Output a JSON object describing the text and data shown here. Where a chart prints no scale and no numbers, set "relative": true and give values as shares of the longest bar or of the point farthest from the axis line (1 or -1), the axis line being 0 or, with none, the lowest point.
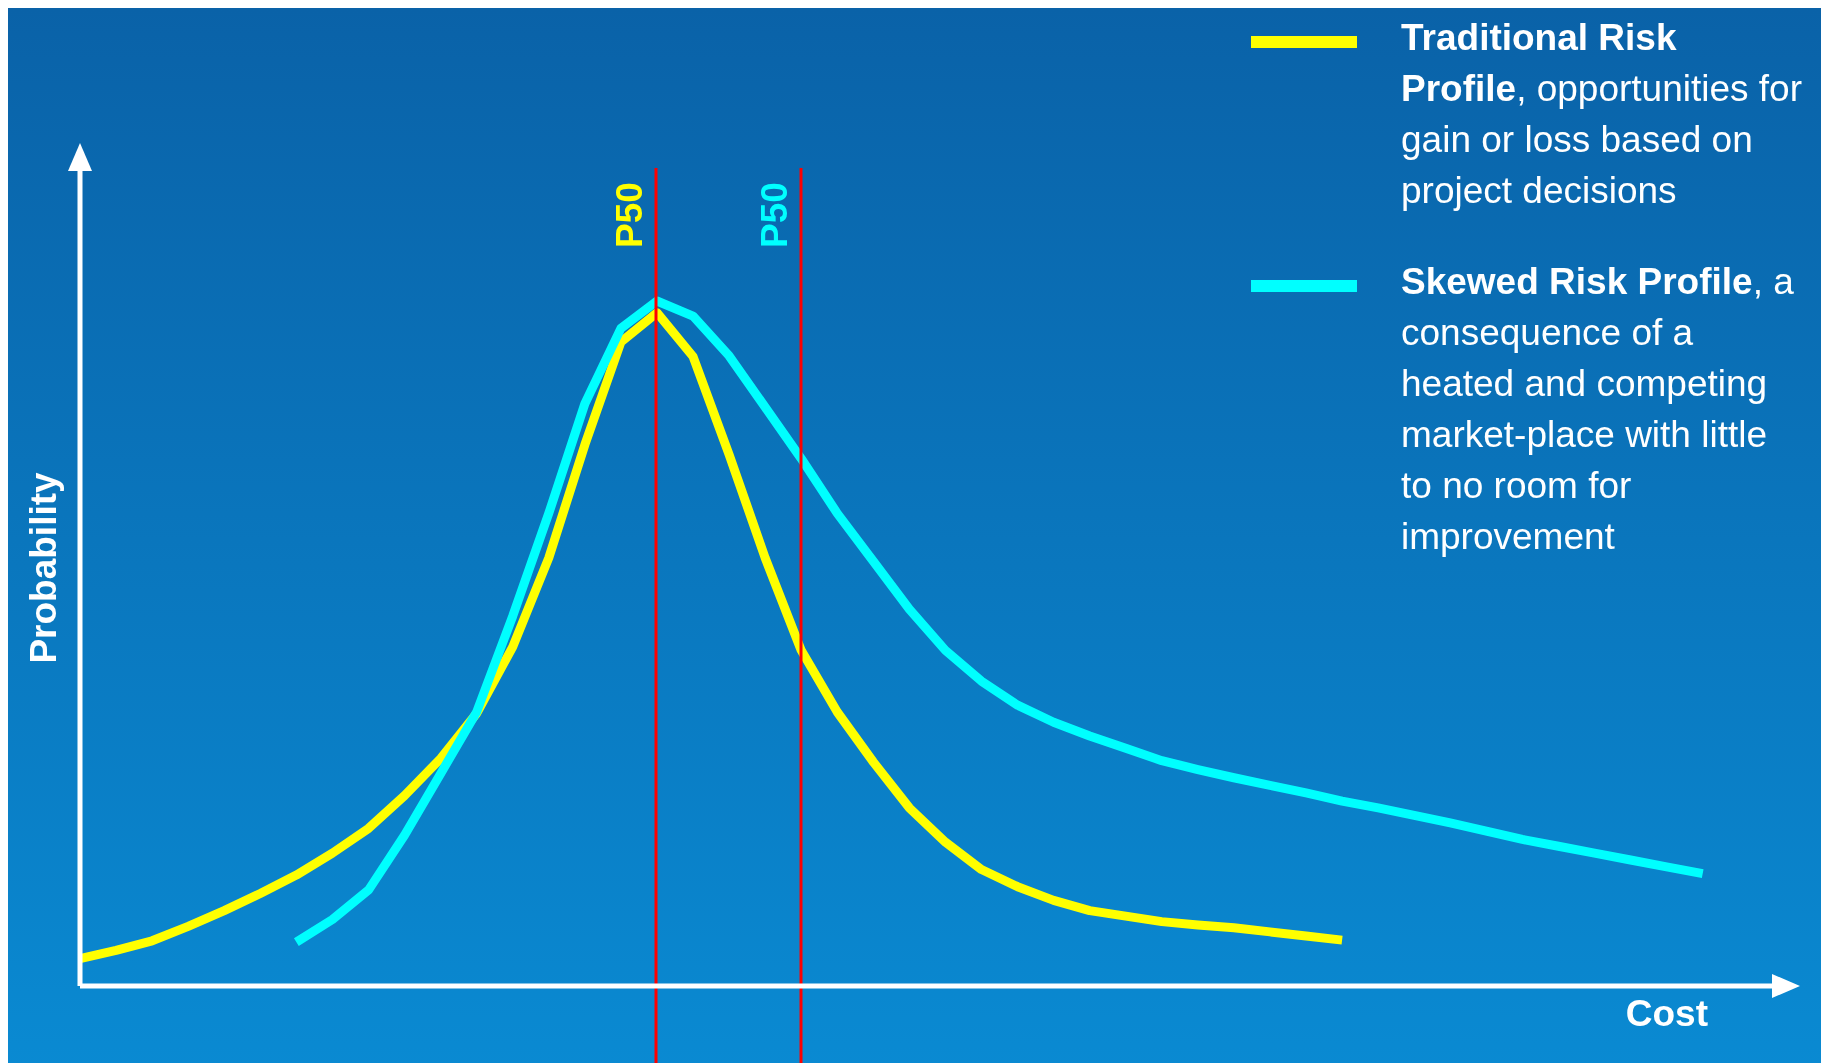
{
  "chart_data": {
    "type": "line",
    "relative": true,
    "xlabel": "Cost",
    "ylabel": "Probability",
    "legend": "top right",
    "marker": "none",
    "line_style": "solid",
    "categories": [
      null,
      null,
      null,
      null,
      null,
      null,
      null,
      null,
      null,
      null,
      null,
      null,
      null,
      null,
      null,
      null,
      null,
      null,
      null,
      null,
      null,
      null,
      null,
      null,
      null,
      null,
      null,
      null,
      null,
      null,
      null,
      null,
      null,
      null,
      null,
      null,
      null,
      null,
      null,
      null,
      null,
      null,
      null,
      null,
      null,
      null
    ],
    "series": [
      {
        "name": "Traditional Risk Profile, opportunities for gain or loss based on project decisions",
        "color": "#ffff00",
        "values": [
          0.04,
          0.052,
          0.066,
          0.087,
          0.11,
          0.135,
          0.162,
          0.194,
          0.23,
          0.278,
          0.332,
          0.398,
          0.495,
          0.625,
          0.79,
          0.94,
          0.983,
          0.919,
          0.776,
          0.625,
          0.49,
          0.4,
          0.327,
          0.26,
          0.21,
          0.17,
          0.145,
          0.125,
          0.11,
          0.102,
          0.094,
          0.089,
          0.085,
          0.079,
          0.073,
          0.067,
          null,
          null,
          null,
          null,
          null,
          null,
          null,
          null,
          null,
          null
        ]
      },
      {
        "name": "Skewed Risk Profile, a consequence of a heated and competing market-place with little to no room for improvement",
        "color": "#00ffff",
        "values": [
          null,
          null,
          null,
          null,
          null,
          null,
          0.064,
          0.097,
          0.14,
          0.22,
          0.31,
          0.4,
          0.54,
          0.69,
          0.85,
          0.96,
          1,
          0.978,
          0.92,
          0.845,
          0.77,
          0.69,
          0.62,
          0.55,
          0.49,
          0.445,
          0.41,
          0.385,
          0.365,
          0.347,
          0.329,
          0.316,
          0.304,
          0.293,
          0.282,
          0.27,
          0.26,
          0.249,
          0.238,
          0.226,
          0.214,
          0.204,
          0.194,
          0.184,
          0.174,
          0.164
        ]
      }
    ],
    "annotations": [
      "P50",
      "P50"
    ]
  }
}
